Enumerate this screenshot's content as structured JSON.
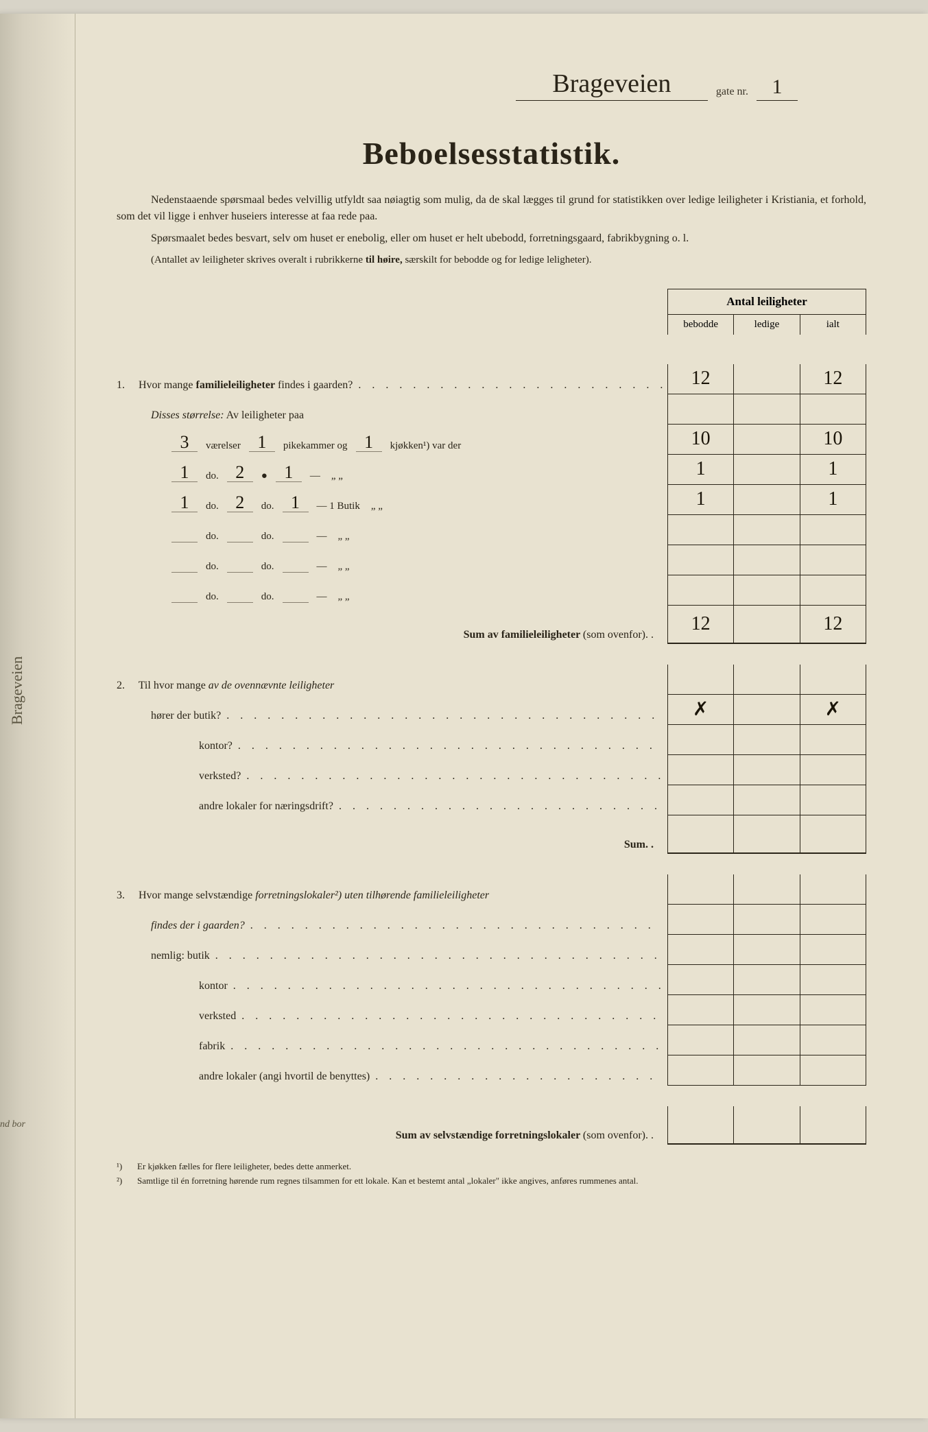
{
  "header": {
    "street_name": "Brageveien",
    "gate_label": "gate nr.",
    "gate_nr": "1"
  },
  "title": "Beboelsesstatistik.",
  "intro": {
    "p1": "Nedenstaaende spørsmaal bedes velvillig utfyldt saa nøiagtig som mulig, da de skal lægges til grund for statistikken over ledige leiligheter i Kristiania, et forhold, som det vil ligge i enhver huseiers interesse at faa rede paa.",
    "p2": "Spørsmaalet bedes besvart, selv om huset er enebolig, eller om huset er helt ubebodd, forretningsgaard, fabrikbygning o. l.",
    "p3_a": "(Antallet av leiligheter skrives overalt i rubrikkerne",
    "p3_b": "til høire,",
    "p3_c": "særskilt for bebodde og for ledige leligheter)."
  },
  "table_header": {
    "title": "Antal leiligheter",
    "cols": [
      "bebodde",
      "ledige",
      "ialt"
    ]
  },
  "q1": {
    "num": "1.",
    "text_a": "Hvor mange",
    "text_b": "familieleiligheter",
    "text_c": "findes i gaarden?",
    "vals": [
      "12",
      "",
      "12"
    ],
    "disses_a": "Disses størrelse:",
    "disses_b": "Av leiligheter paa",
    "rows": [
      {
        "v": "3",
        "l1": "værelser",
        "p": "1",
        "l2": "pikekammer og",
        "k": "1",
        "l3": "kjøkken¹) var der",
        "note": "",
        "vals": [
          "10",
          "",
          "10"
        ]
      },
      {
        "v": "1",
        "l1": "do.",
        "p": "2",
        "l2": "●",
        "k": "1",
        "l3": "—",
        "note": "„    „",
        "vals": [
          "1",
          "",
          "1"
        ]
      },
      {
        "v": "1",
        "l1": "do.",
        "p": "2",
        "l2": "do.",
        "k": "1",
        "l3": "— 1 Butik",
        "note": "„    „",
        "vals": [
          "1",
          "",
          "1"
        ]
      },
      {
        "v": "",
        "l1": "do.",
        "p": "",
        "l2": "do.",
        "k": "",
        "l3": "—",
        "note": "„    „",
        "vals": [
          "",
          "",
          ""
        ]
      },
      {
        "v": "",
        "l1": "do.",
        "p": "",
        "l2": "do.",
        "k": "",
        "l3": "—",
        "note": "„    „",
        "vals": [
          "",
          "",
          ""
        ]
      },
      {
        "v": "",
        "l1": "do.",
        "p": "",
        "l2": "do.",
        "k": "",
        "l3": "—",
        "note": "„    „",
        "vals": [
          "",
          "",
          ""
        ]
      }
    ],
    "sum_a": "Sum av familieleiligheter",
    "sum_b": "(som ovenfor). .",
    "sum_vals": [
      "12",
      "",
      "12"
    ]
  },
  "q2": {
    "num": "2.",
    "text_a": "Til hvor mange",
    "text_b": "av de ovennævnte leiligheter",
    "rows": [
      {
        "label": "hører der butik?",
        "indent": 1,
        "vals": [
          "✗",
          "",
          "✗"
        ]
      },
      {
        "label": "kontor?",
        "indent": 2,
        "vals": [
          "",
          "",
          ""
        ]
      },
      {
        "label": "verksted?",
        "indent": 2,
        "vals": [
          "",
          "",
          ""
        ]
      },
      {
        "label": "andre lokaler for næringsdrift?",
        "indent": 2,
        "vals": [
          "",
          "",
          ""
        ]
      }
    ],
    "sum": "Sum. .",
    "sum_vals": [
      "",
      "",
      ""
    ]
  },
  "q3": {
    "num": "3.",
    "text_a": "Hvor mange selvstændige",
    "text_b": "forretningslokaler²)",
    "text_c": "uten tilhørende familieleiligheter",
    "text_d": "findes der i gaarden?",
    "vals_top": [
      "",
      "",
      ""
    ],
    "rows": [
      {
        "label": "nemlig: butik",
        "indent": 1,
        "vals": [
          "",
          "",
          ""
        ]
      },
      {
        "label": "kontor",
        "indent": 2,
        "vals": [
          "",
          "",
          ""
        ]
      },
      {
        "label": "verksted",
        "indent": 2,
        "vals": [
          "",
          "",
          ""
        ]
      },
      {
        "label": "fabrik",
        "indent": 2,
        "vals": [
          "",
          "",
          ""
        ]
      },
      {
        "label": "andre lokaler (angi hvortil de benyttes)",
        "indent": 2,
        "vals": [
          "",
          "",
          ""
        ]
      }
    ],
    "sum_a": "Sum av selvstændige forretningslokaler",
    "sum_b": "(som ovenfor). .",
    "sum_vals": [
      "",
      "",
      ""
    ]
  },
  "footnotes": {
    "f1_num": "¹)",
    "f1": "Er kjøkken fælles for flere leiligheter, bedes dette anmerket.",
    "f2_num": "²)",
    "f2": "Samtlige til én forretning hørende rum regnes tilsammen for ett lokale.  Kan et bestemt antal „lokaler\" ikke angives, anføres rummenes antal."
  },
  "spine": {
    "cursive": "Brageveien",
    "label": "nd bor"
  }
}
